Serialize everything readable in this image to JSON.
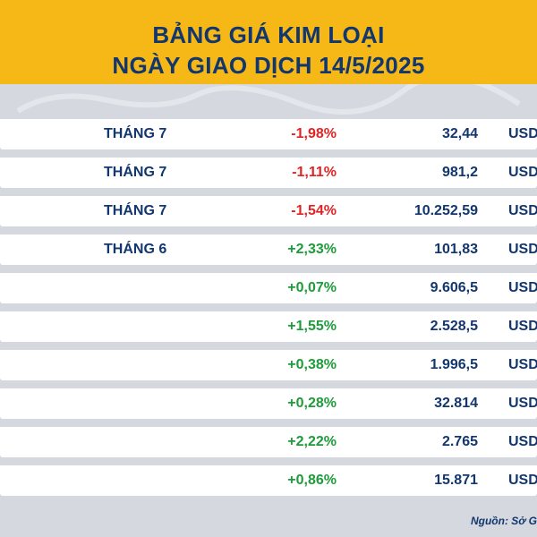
{
  "header": {
    "title_line1": "BẢNG GIÁ KIM LOẠI",
    "title_line2": "NGÀY GIAO DỊCH 14/5/2025"
  },
  "rows": [
    {
      "month": "THÁNG 7",
      "change": "-1,98%",
      "price": "32,44",
      "unit": "USD"
    },
    {
      "month": "THÁNG 7",
      "change": "-1,11%",
      "price": "981,2",
      "unit": "USD"
    },
    {
      "month": "THÁNG 7",
      "change": "-1,54%",
      "price": "10.252,59",
      "unit": "USD"
    },
    {
      "month": "THÁNG 6",
      "change": "+2,33%",
      "price": "101,83",
      "unit": "USD"
    },
    {
      "month": "",
      "change": "+0,07%",
      "price": "9.606,5",
      "unit": "USD"
    },
    {
      "month": "",
      "change": "+1,55%",
      "price": "2.528,5",
      "unit": "USD"
    },
    {
      "month": "",
      "change": "+0,38%",
      "price": "1.996,5",
      "unit": "USD"
    },
    {
      "month": "",
      "change": "+0,28%",
      "price": "32.814",
      "unit": "USD"
    },
    {
      "month": "",
      "change": "+2,22%",
      "price": "2.765",
      "unit": "USD"
    },
    {
      "month": "",
      "change": "+0,86%",
      "price": "15.871",
      "unit": "USD"
    }
  ],
  "source": "Nguồn: Sở G",
  "colors": {
    "header_bg": "#f5b816",
    "title": "#12366e",
    "negative": "#e02424",
    "positive": "#1e9b3a",
    "row_gap": "#d5d9df"
  }
}
